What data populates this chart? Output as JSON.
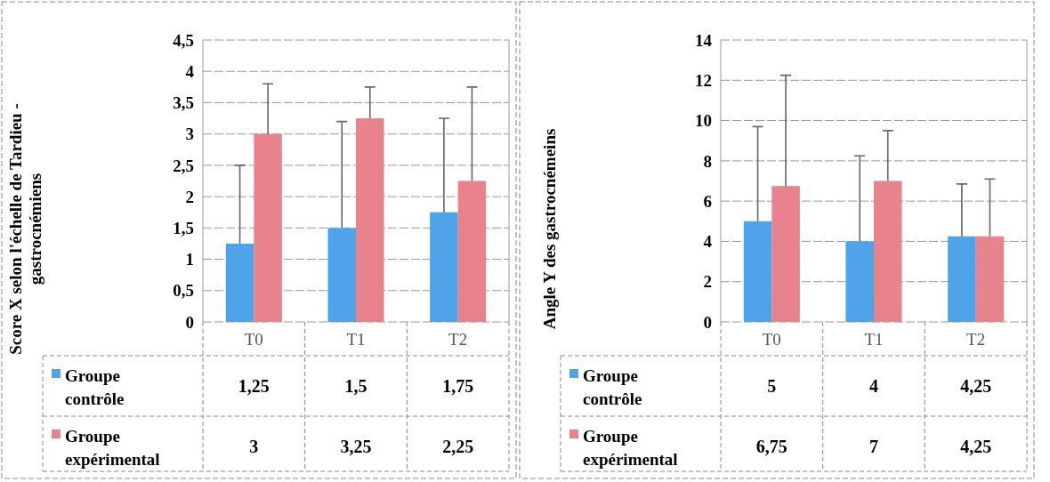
{
  "chart_data": [
    {
      "type": "bar",
      "ylabel": "Score X selon l'échelle de Tardieu - gastrocnémiens",
      "categories": [
        "T0",
        "T1",
        "T2"
      ],
      "ylim": [
        0,
        4.5
      ],
      "yticks": [
        0,
        {
          "value": 0.5,
          "label": "0,5"
        },
        1,
        {
          "value": 1.5,
          "label": "1,5"
        },
        2,
        {
          "value": 2.5,
          "label": "2,5"
        },
        3,
        {
          "value": 3.5,
          "label": "3,5"
        },
        4,
        {
          "value": 4.5,
          "label": "4,5"
        }
      ],
      "grid": "y",
      "legend": "bottom",
      "series": [
        {
          "name": "Groupe contrôle",
          "color": "#4fa3e8",
          "values": [
            1.25,
            1.5,
            1.75
          ],
          "value_labels": [
            "1,25",
            "1,5",
            "1,75"
          ],
          "errors": [
            [
              1.25,
              2.5
            ],
            [
              1.5,
              3.2
            ],
            [
              1.75,
              3.25
            ]
          ]
        },
        {
          "name": "Groupe expérimental",
          "color": "#e8828c",
          "values": [
            3,
            3.25,
            2.25
          ],
          "value_labels": [
            "3",
            "3,25",
            "2,25"
          ],
          "errors": [
            [
              3,
              3.8
            ],
            [
              3.25,
              3.75
            ],
            [
              2.25,
              3.75
            ]
          ]
        }
      ]
    },
    {
      "type": "bar",
      "ylabel": "Angle Y des gastrocnémeins",
      "categories": [
        "T0",
        "T1",
        "T2"
      ],
      "ylim": [
        0,
        14
      ],
      "yticks": [
        0,
        2,
        4,
        6,
        8,
        10,
        12,
        14
      ],
      "grid": "y",
      "legend": "bottom",
      "series": [
        {
          "name": "Groupe contrôle",
          "color": "#4fa3e8",
          "values": [
            5,
            4,
            4.25
          ],
          "value_labels": [
            "5",
            "4",
            "4,25"
          ],
          "errors": [
            [
              5,
              9.7
            ],
            [
              4,
              8.25
            ],
            [
              4.25,
              6.85
            ]
          ]
        },
        {
          "name": "Groupe expérimental",
          "color": "#e8828c",
          "values": [
            6.75,
            7,
            4.25
          ],
          "value_labels": [
            "6,75",
            "7",
            "4,25"
          ],
          "errors": [
            [
              6.75,
              12.25
            ],
            [
              7,
              9.5
            ],
            [
              4.25,
              7.1
            ]
          ]
        }
      ]
    }
  ]
}
